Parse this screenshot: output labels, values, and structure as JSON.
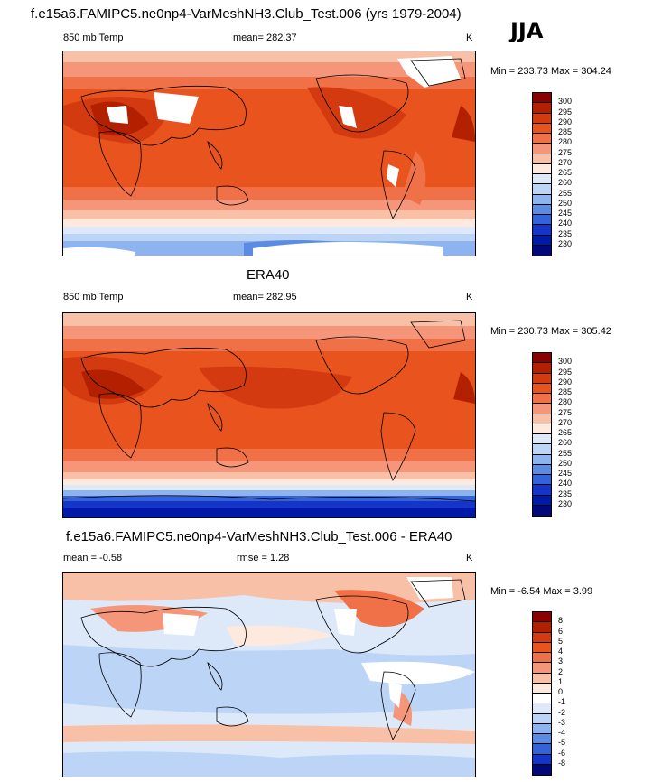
{
  "panel1": {
    "title": "f.e15a6.FAMIPC5.ne0np4-VarMeshNH3.Club_Test.006 (yrs 1979-2004)",
    "season": "JJA",
    "variable": "850 mb Temp",
    "stat": "mean= 282.37",
    "units": "K",
    "minmax": "Min = 233.73 Max = 304.24"
  },
  "panel2": {
    "title": "ERA40",
    "variable": "850 mb Temp",
    "stat": "mean= 282.95",
    "units": "K",
    "minmax": "Min = 230.73 Max = 305.42"
  },
  "panel3": {
    "title": "f.e15a6.FAMIPC5.ne0np4-VarMeshNH3.Club_Test.006 - ERA40",
    "stat_mean": "mean =  -0.58",
    "stat_rmse": "rmse =   1.28",
    "units": "K",
    "minmax": "Min =  -6.54 Max =   3.99"
  },
  "temp_colorbar": {
    "labels": [
      "300",
      "295",
      "290",
      "285",
      "280",
      "275",
      "270",
      "265",
      "260",
      "255",
      "250",
      "245",
      "240",
      "235",
      "230"
    ],
    "colors": [
      "#8b0000",
      "#b22000",
      "#d43a10",
      "#e8531e",
      "#f07048",
      "#f5957a",
      "#f9c0a8",
      "#fde9dd",
      "#dde9f9",
      "#bcd4f5",
      "#8db4ee",
      "#5b8ce3",
      "#3462d8",
      "#1535c8",
      "#0019a8",
      "#00087a"
    ]
  },
  "diff_colorbar": {
    "labels": [
      "8",
      "6",
      "5",
      "4",
      "3",
      "2",
      "1",
      "0",
      "-1",
      "-2",
      "-3",
      "-4",
      "-5",
      "-6",
      "-8"
    ],
    "colors": [
      "#8b0000",
      "#b22000",
      "#d43a10",
      "#e8531e",
      "#f07048",
      "#f5957a",
      "#f9c0a8",
      "#fde9dd",
      "#ffffff",
      "#dde9f9",
      "#bcd4f5",
      "#8db4ee",
      "#5b8ce3",
      "#3462d8",
      "#1535c8",
      "#00087a"
    ]
  }
}
